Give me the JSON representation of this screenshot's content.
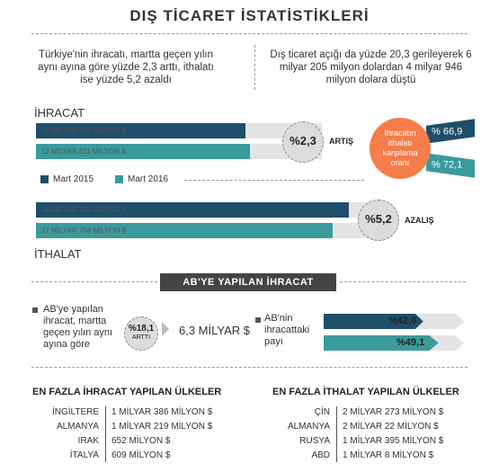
{
  "title": "DIŞ TİCARET İSTATİSTİKLERİ",
  "intro_left": "Türkiye'nin ihracatı, martta geçen yılın aynı ayına göre yüzde 2,3 arttı, ithalatı ise yüzde 5,2 azaldı",
  "intro_right": "Dış ticaret açığı da yüzde 20,3 gerileyerek 6 milyar 205 milyon dolardan 4 milyar 946 milyon dolara düştü",
  "colors": {
    "mart2015": "#1f4e6b",
    "mart2016": "#3a9b9b",
    "orange": "#f47d4a",
    "dark": "#444444"
  },
  "chart_data": [
    {
      "type": "bar",
      "title": "İHRACAT",
      "categories": [
        "Mart 2015",
        "Mart 2016"
      ],
      "values_label": [
        "12 MİLYAR 521 MİLYON $",
        "12 MİLYAR 811 MİLYON $"
      ],
      "values": [
        12521,
        12811
      ],
      "change": "%2,3",
      "change_label": "ARTIŞ"
    },
    {
      "type": "bar",
      "title": "İTHALAT",
      "categories": [
        "Mart 2015",
        "Mart 2016"
      ],
      "values_label": [
        "18 MİLYAR 726 MİLYON $",
        "17 MİLYAR 758 MİLYON $"
      ],
      "values": [
        18726,
        17758
      ],
      "change": "%5,2",
      "change_label": "AZALIŞ"
    }
  ],
  "legend": [
    "Mart 2015",
    "Mart 2016"
  ],
  "coverage": {
    "label": "İhracatın ithalatı karşılama oranı",
    "values": [
      "% 66,9",
      "% 72,1"
    ]
  },
  "ab": {
    "banner": "AB'YE YAPILAN İHRACAT",
    "left_text": "AB'ye yapılan ihracat, martta geçen yılın aynı ayına göre",
    "circle_pct": "%18,1",
    "circle_label": "ARTTI",
    "amount": "6,3 MİLYAR $",
    "share_text": "AB'nin ihracattaki payı",
    "share_values": [
      "%42,6",
      "%49,1"
    ]
  },
  "export_table": {
    "title": "EN FAZLA İHRACAT YAPILAN ÜLKELER",
    "rows": [
      {
        "country": "İNGİLTERE",
        "value": "1 MİLYAR 386 MİLYON $"
      },
      {
        "country": "ALMANYA",
        "value": "1 MİLYAR 219 MİLYON $"
      },
      {
        "country": "IRAK",
        "value": "652 MİLYON $"
      },
      {
        "country": "İTALYA",
        "value": "609 MİLYON $"
      }
    ]
  },
  "import_table": {
    "title": "EN FAZLA İTHALAT YAPILAN ÜLKELER",
    "rows": [
      {
        "country": "ÇİN",
        "value": "2 MİLYAR 273 MİLYON $"
      },
      {
        "country": "ALMANYA",
        "value": "2 MİLYAR 22  MİLYON $"
      },
      {
        "country": "RUSYA",
        "value": "1 MİLYAR 395 MİLYON $"
      },
      {
        "country": "ABD",
        "value": "1 MİLYAR 8 MİLYON $"
      }
    ]
  }
}
